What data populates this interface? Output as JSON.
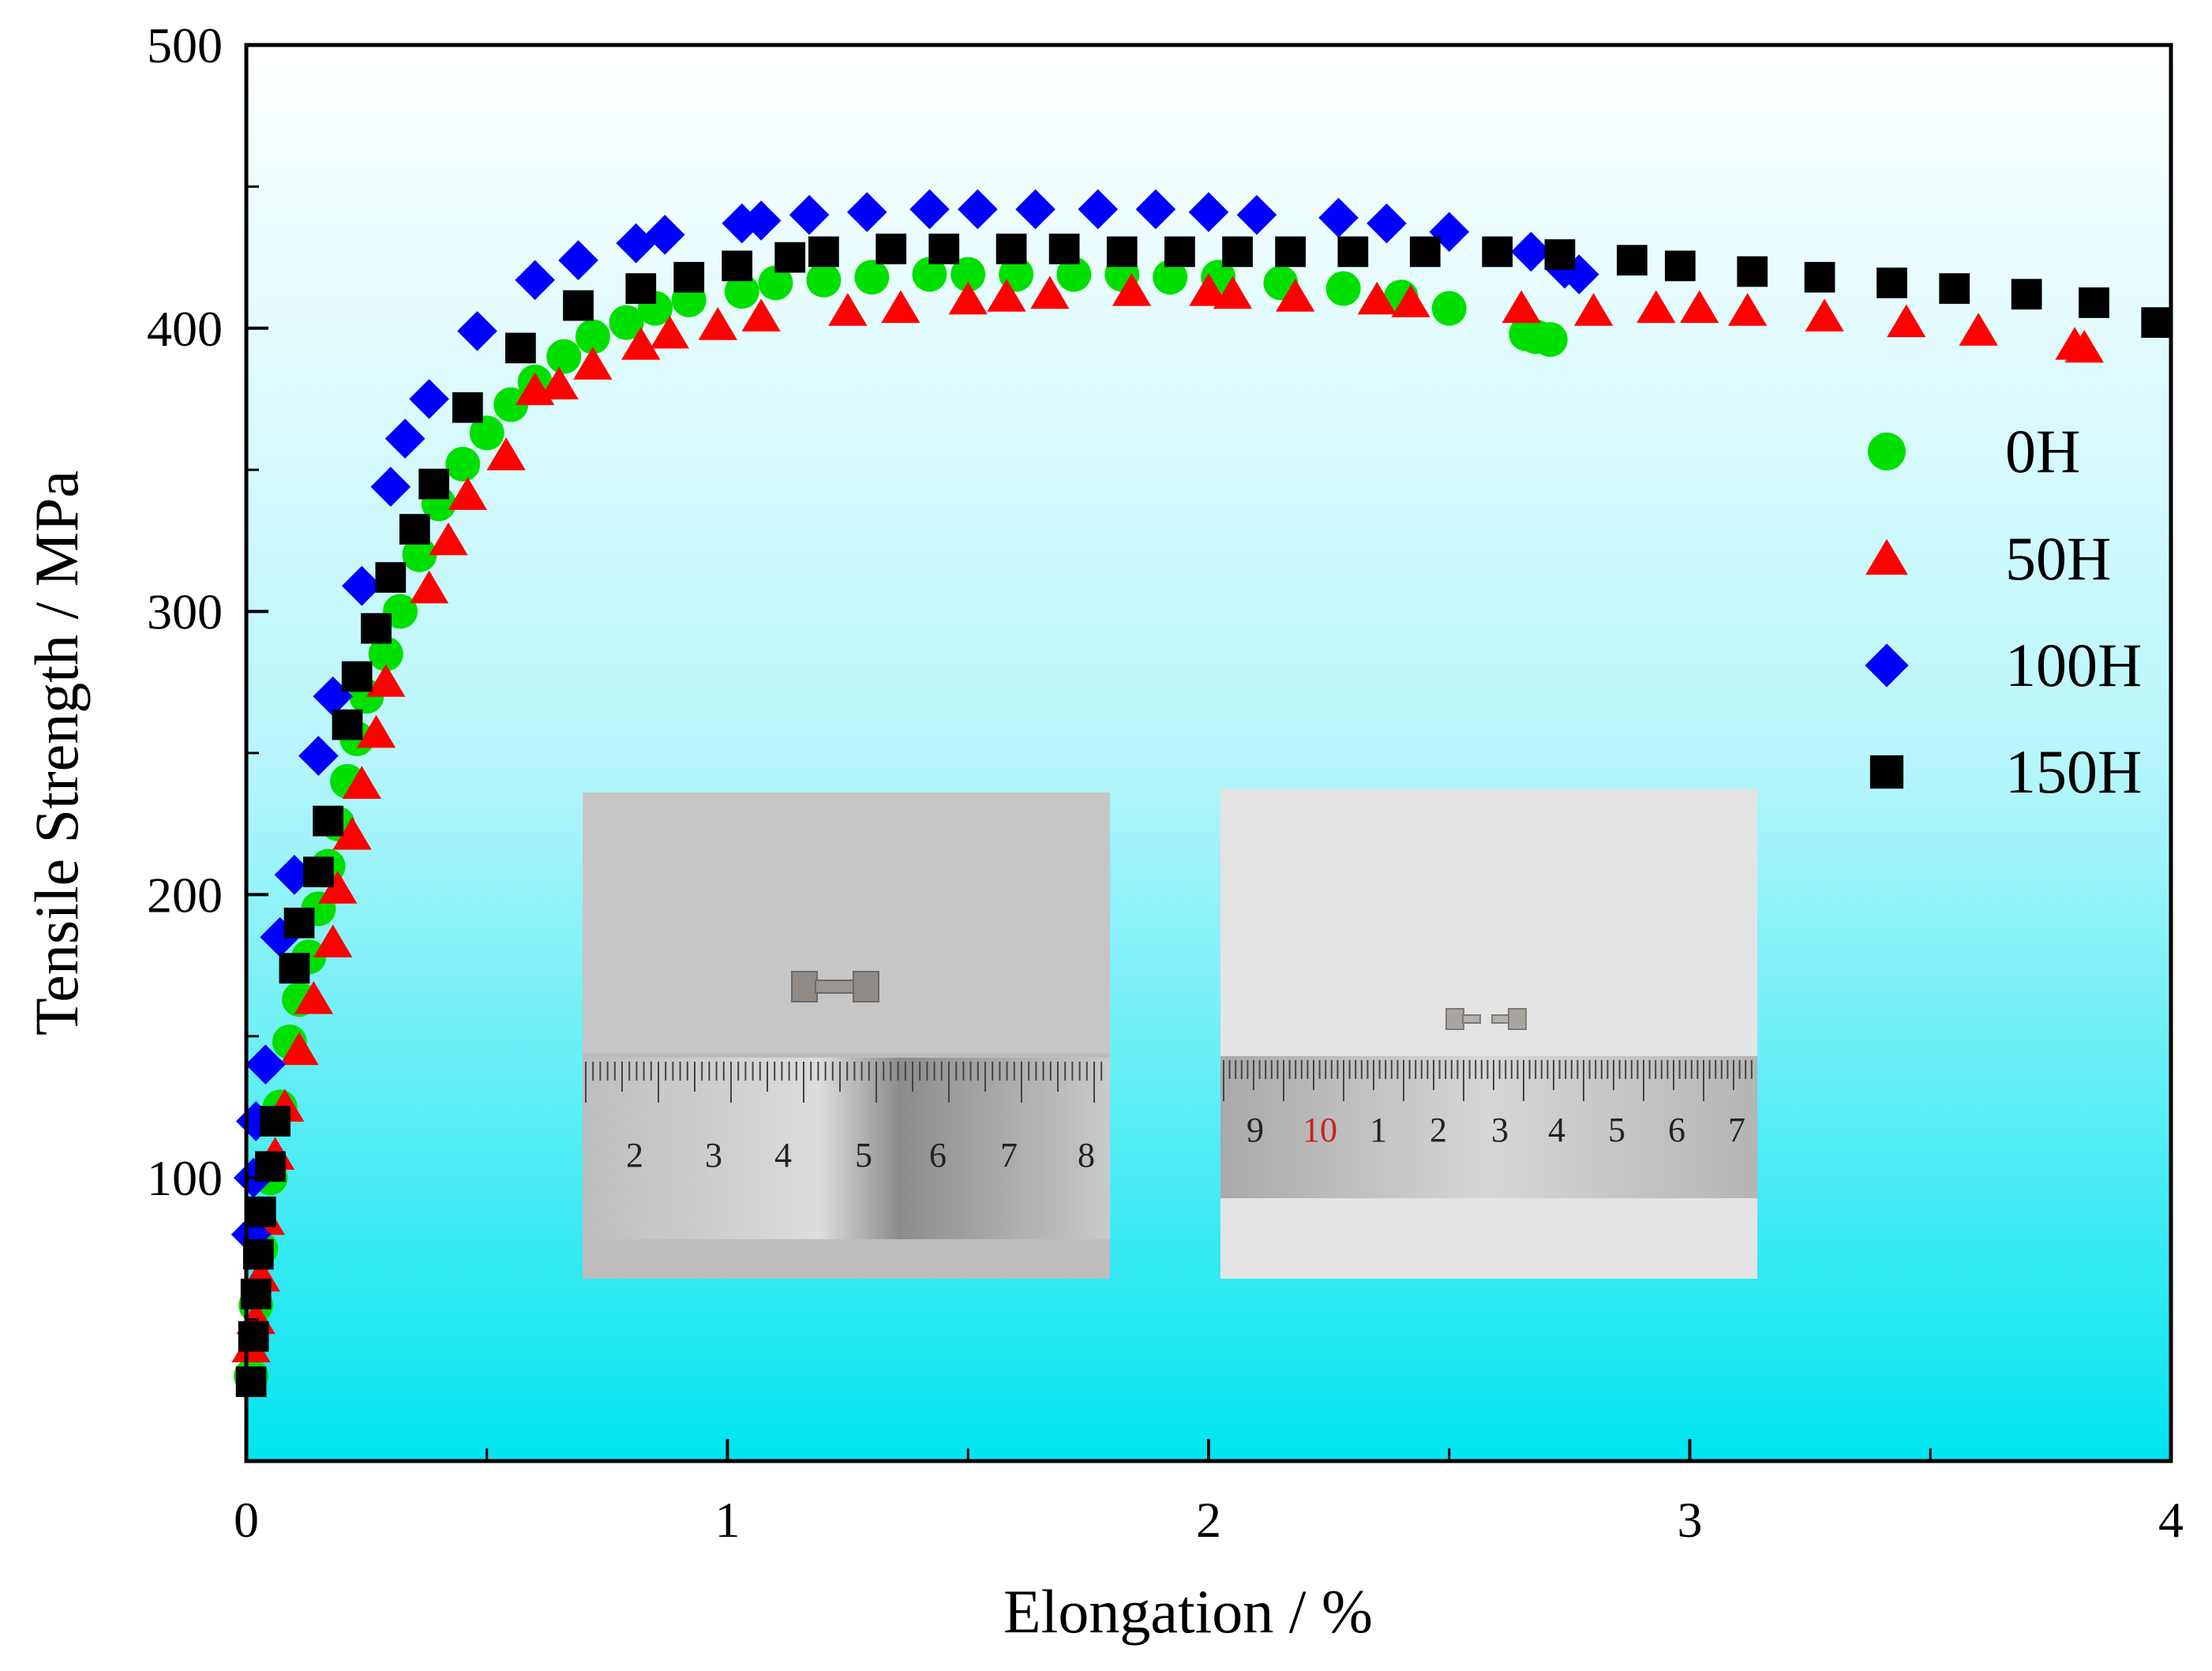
{
  "chart_data": {
    "type": "scatter",
    "title": "",
    "xlabel": "Elongation / %",
    "ylabel": "Tensile Strength / MPa",
    "xlim": [
      0,
      4
    ],
    "ylim": [
      0,
      500
    ],
    "x_ticks": [
      0,
      1,
      2,
      3,
      4
    ],
    "x_tick_labels": [
      "0",
      "1",
      "2",
      "3",
      "4"
    ],
    "y_ticks": [
      100,
      200,
      300,
      400,
      500
    ],
    "y_tick_labels": [
      "100",
      "200",
      "300",
      "400",
      "500"
    ],
    "grid": false,
    "legend_position": "right",
    "background": {
      "top_color": "#ffffff",
      "bottom_color": "#00e5f0"
    },
    "series": [
      {
        "name": "0H",
        "marker": "circle",
        "color": "#00e000",
        "points": [
          [
            0.01,
            30
          ],
          [
            0.02,
            55
          ],
          [
            0.03,
            75
          ],
          [
            0.05,
            100
          ],
          [
            0.07,
            125
          ],
          [
            0.09,
            148
          ],
          [
            0.11,
            163
          ],
          [
            0.13,
            178
          ],
          [
            0.15,
            195
          ],
          [
            0.17,
            210
          ],
          [
            0.19,
            225
          ],
          [
            0.21,
            240
          ],
          [
            0.23,
            255
          ],
          [
            0.25,
            270
          ],
          [
            0.29,
            285
          ],
          [
            0.32,
            300
          ],
          [
            0.36,
            320
          ],
          [
            0.4,
            338
          ],
          [
            0.45,
            352
          ],
          [
            0.5,
            363
          ],
          [
            0.55,
            373
          ],
          [
            0.6,
            381
          ],
          [
            0.66,
            390
          ],
          [
            0.72,
            397
          ],
          [
            0.79,
            402
          ],
          [
            0.85,
            407
          ],
          [
            0.92,
            410
          ],
          [
            1.03,
            413
          ],
          [
            1.1,
            416
          ],
          [
            1.2,
            417
          ],
          [
            1.3,
            418
          ],
          [
            1.42,
            419
          ],
          [
            1.5,
            419
          ],
          [
            1.6,
            419
          ],
          [
            1.72,
            419
          ],
          [
            1.82,
            419
          ],
          [
            1.92,
            418
          ],
          [
            2.02,
            418
          ],
          [
            2.15,
            416
          ],
          [
            2.28,
            414
          ],
          [
            2.4,
            411
          ],
          [
            2.5,
            407
          ],
          [
            2.66,
            398
          ],
          [
            2.68,
            397
          ],
          [
            2.71,
            396
          ]
        ]
      },
      {
        "name": "50H",
        "marker": "triangle",
        "color": "#ff0000",
        "points": [
          [
            0.01,
            40
          ],
          [
            0.02,
            50
          ],
          [
            0.03,
            65
          ],
          [
            0.04,
            85
          ],
          [
            0.06,
            108
          ],
          [
            0.08,
            125
          ],
          [
            0.11,
            145
          ],
          [
            0.14,
            163
          ],
          [
            0.18,
            183
          ],
          [
            0.19,
            202
          ],
          [
            0.22,
            221
          ],
          [
            0.24,
            239
          ],
          [
            0.27,
            257
          ],
          [
            0.29,
            275
          ],
          [
            0.38,
            308
          ],
          [
            0.42,
            325
          ],
          [
            0.46,
            341
          ],
          [
            0.54,
            355
          ],
          [
            0.6,
            378
          ],
          [
            0.65,
            380
          ],
          [
            0.72,
            387
          ],
          [
            0.82,
            394
          ],
          [
            0.88,
            398
          ],
          [
            0.98,
            401
          ],
          [
            1.07,
            404
          ],
          [
            1.25,
            406
          ],
          [
            1.36,
            407
          ],
          [
            1.5,
            410
          ],
          [
            1.58,
            411
          ],
          [
            1.67,
            412
          ],
          [
            1.84,
            413
          ],
          [
            2.0,
            413
          ],
          [
            2.05,
            412
          ],
          [
            2.18,
            411
          ],
          [
            2.35,
            410
          ],
          [
            2.42,
            409
          ],
          [
            2.65,
            407
          ],
          [
            2.8,
            406
          ],
          [
            2.93,
            407
          ],
          [
            3.02,
            407
          ],
          [
            3.12,
            406
          ],
          [
            3.28,
            404
          ],
          [
            3.45,
            402
          ],
          [
            3.6,
            399
          ],
          [
            3.8,
            394
          ],
          [
            3.82,
            393
          ]
        ]
      },
      {
        "name": "100H",
        "marker": "diamond",
        "color": "#0000ff",
        "points": [
          [
            0.01,
            80
          ],
          [
            0.015,
            100
          ],
          [
            0.02,
            120
          ],
          [
            0.04,
            140
          ],
          [
            0.07,
            185
          ],
          [
            0.1,
            207
          ],
          [
            0.15,
            249
          ],
          [
            0.18,
            270
          ],
          [
            0.24,
            309
          ],
          [
            0.3,
            344
          ],
          [
            0.33,
            361
          ],
          [
            0.38,
            375
          ],
          [
            0.48,
            399
          ],
          [
            0.6,
            417
          ],
          [
            0.69,
            424
          ],
          [
            0.81,
            430
          ],
          [
            0.87,
            433
          ],
          [
            1.03,
            437
          ],
          [
            1.07,
            438
          ],
          [
            1.17,
            440
          ],
          [
            1.29,
            441
          ],
          [
            1.42,
            442
          ],
          [
            1.52,
            442
          ],
          [
            1.64,
            442
          ],
          [
            1.77,
            442
          ],
          [
            1.89,
            442
          ],
          [
            2.0,
            441
          ],
          [
            2.1,
            440
          ],
          [
            2.27,
            439
          ],
          [
            2.37,
            437
          ],
          [
            2.5,
            434
          ],
          [
            2.67,
            427
          ],
          [
            2.74,
            421
          ],
          [
            2.77,
            419
          ]
        ]
      },
      {
        "name": "150H",
        "marker": "square",
        "color": "#000000",
        "points": [
          [
            0.01,
            28
          ],
          [
            0.015,
            44
          ],
          [
            0.02,
            59
          ],
          [
            0.025,
            73
          ],
          [
            0.03,
            88
          ],
          [
            0.05,
            104
          ],
          [
            0.06,
            120
          ],
          [
            0.1,
            174
          ],
          [
            0.11,
            190
          ],
          [
            0.15,
            208
          ],
          [
            0.17,
            226
          ],
          [
            0.21,
            260
          ],
          [
            0.23,
            277
          ],
          [
            0.27,
            294
          ],
          [
            0.3,
            312
          ],
          [
            0.35,
            329
          ],
          [
            0.39,
            345
          ],
          [
            0.46,
            372
          ],
          [
            0.57,
            393
          ],
          [
            0.69,
            408
          ],
          [
            0.82,
            414
          ],
          [
            0.92,
            418
          ],
          [
            1.02,
            422
          ],
          [
            1.13,
            425
          ],
          [
            1.2,
            427
          ],
          [
            1.34,
            428
          ],
          [
            1.45,
            428
          ],
          [
            1.59,
            428
          ],
          [
            1.7,
            428
          ],
          [
            1.82,
            427
          ],
          [
            1.94,
            427
          ],
          [
            2.06,
            427
          ],
          [
            2.17,
            427
          ],
          [
            2.3,
            427
          ],
          [
            2.45,
            427
          ],
          [
            2.6,
            427
          ],
          [
            2.73,
            426
          ],
          [
            2.88,
            424
          ],
          [
            2.98,
            422
          ],
          [
            3.13,
            420
          ],
          [
            3.27,
            418
          ],
          [
            3.42,
            416
          ],
          [
            3.55,
            414
          ],
          [
            3.7,
            412
          ],
          [
            3.84,
            409
          ],
          [
            3.97,
            402
          ]
        ]
      }
    ]
  },
  "insets": {
    "left": {
      "ruler_labels": [
        "2",
        "3",
        "4",
        "5",
        "6",
        "7",
        "8"
      ]
    },
    "right": {
      "ruler_labels": [
        "9",
        "10",
        "1",
        "2",
        "3",
        "4",
        "5",
        "6",
        "7"
      ]
    }
  }
}
